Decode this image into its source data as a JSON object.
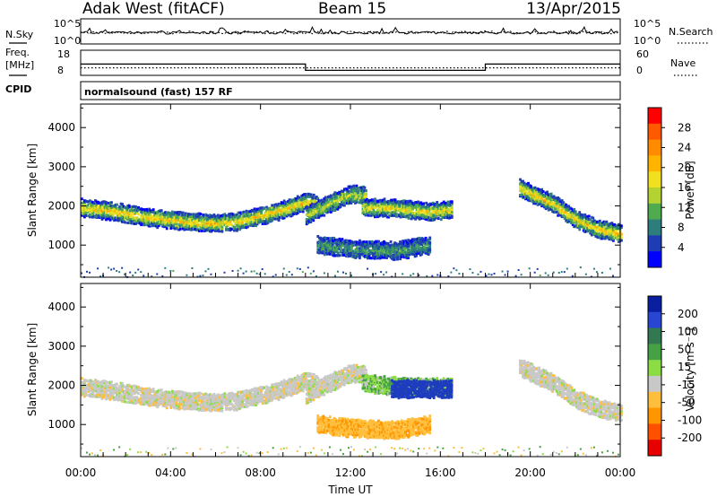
{
  "header": {
    "station": "Adak West (fitACF)",
    "beam": "Beam 15",
    "date": "13/Apr/2015"
  },
  "nsky_panel": {
    "left_label": "N.Sky",
    "right_label": "N.Search",
    "y_ticks_left": [
      "10^5",
      "10^0"
    ],
    "y_ticks_right": [
      "10^5",
      "10^0"
    ]
  },
  "freq_panel": {
    "left_label_line1": "Freq.",
    "left_label_line2": "[MHz]",
    "right_label": "Nave",
    "y_ticks_left": [
      "18",
      "8"
    ],
    "y_ticks_right": [
      "60",
      "0"
    ]
  },
  "cpid_panel": {
    "left_label": "CPID",
    "program": "normalsound (fast) 157 RF"
  },
  "power_panel": {
    "ylabel": "Slant Range [km]",
    "colorbar_label": "Power [dB]",
    "colorbar_ticks": [
      "28",
      "24",
      "20",
      "16",
      "12",
      "8",
      "4"
    ],
    "colorbar_colors": [
      "#ff0000",
      "#ff5a00",
      "#ff8c00",
      "#ffb400",
      "#f0e020",
      "#b4d232",
      "#50aa50",
      "#2d7d7d",
      "#1e3cb4",
      "#0000ff"
    ]
  },
  "velocity_panel": {
    "ylabel": "Slant Range [km]",
    "colorbar_label": "Velocity [m s⁻¹]",
    "colorbar_ticks": [
      "200",
      "100",
      "50",
      "15",
      "-15",
      "-50",
      "-100",
      "-200"
    ],
    "colorbar_colors": [
      "#0a1ea0",
      "#2846d2",
      "#327850",
      "#46a046",
      "#8cdc46",
      "#c8c8c8",
      "#ffbe3c",
      "#ff9600",
      "#ff5000",
      "#e60000"
    ]
  },
  "x_axis": {
    "title": "Time UT",
    "ticks": [
      "00:00",
      "04:00",
      "08:00",
      "12:00",
      "16:00",
      "20:00",
      "00:00"
    ]
  },
  "chart_data": [
    {
      "type": "line",
      "title": "Freq. [MHz]",
      "x": [
        0,
        10,
        18,
        24
      ],
      "series": [
        {
          "name": "Freq.",
          "values": [
            12.5,
            10.0,
            12.5,
            12.5
          ]
        },
        {
          "name": "Nave",
          "values": [
            18,
            18,
            18,
            18
          ]
        }
      ],
      "xlabel": "Time UT",
      "ylim": [
        8,
        18
      ]
    },
    {
      "type": "heatmap",
      "title": "Power [dB]",
      "xlabel": "Time UT",
      "ylabel": "Slant Range [km]",
      "xlim": [
        0,
        24
      ],
      "ylim": [
        180,
        4600
      ],
      "yticks": [
        1000,
        2000,
        3000,
        4000
      ],
      "colorbar": [
        4,
        8,
        12,
        16,
        20,
        24,
        28
      ],
      "bands": [
        {
          "t": [
            0,
            1.5,
            3,
            4.5,
            6,
            7,
            8,
            9,
            10,
            10.5
          ],
          "r": [
            1950,
            1850,
            1700,
            1600,
            1550,
            1600,
            1750,
            1900,
            2100,
            2050
          ],
          "dB": 20
        },
        {
          "t": [
            10,
            11,
            12,
            12.7
          ],
          "r": [
            1750,
            2050,
            2300,
            2250
          ],
          "dB": 16
        },
        {
          "t": [
            12.5,
            13.5,
            14.5,
            15.5,
            16.5
          ],
          "r": [
            1950,
            1950,
            1900,
            1850,
            1900
          ],
          "dB": 18
        },
        {
          "t": [
            10.5,
            12,
            14,
            15.5
          ],
          "r": [
            1000,
            900,
            850,
            1000
          ],
          "dB": 10
        },
        {
          "t": [
            19.5,
            21,
            22,
            23,
            24
          ],
          "r": [
            2450,
            2050,
            1650,
            1400,
            1300
          ],
          "dB": 20
        }
      ]
    },
    {
      "type": "heatmap",
      "title": "Velocity [m s⁻¹]",
      "xlabel": "Time UT",
      "ylabel": "Slant Range [km]",
      "xlim": [
        0,
        24
      ],
      "ylim": [
        180,
        4600
      ],
      "yticks": [
        1000,
        2000,
        3000,
        4000
      ],
      "colorbar": [
        -200,
        -100,
        -50,
        -15,
        15,
        50,
        100,
        200
      ],
      "bands": [
        {
          "t": [
            0,
            1.5,
            3,
            4.5,
            6,
            7,
            8,
            9,
            10,
            10.5
          ],
          "r": [
            1950,
            1850,
            1700,
            1600,
            1550,
            1600,
            1750,
            1900,
            2100,
            2050
          ],
          "v": 0
        },
        {
          "t": [
            10,
            11,
            12,
            12.7
          ],
          "r": [
            1750,
            2050,
            2300,
            2250
          ],
          "v": 0
        },
        {
          "t": [
            12.5,
            13.5,
            14.5,
            15.5,
            16.5
          ],
          "r": [
            2050,
            2000,
            1950,
            1950,
            1950
          ],
          "v": 30
        },
        {
          "t": [
            13.8,
            14.8,
            15.5,
            16.5
          ],
          "r": [
            1900,
            1900,
            1900,
            1900
          ],
          "v": 200
        },
        {
          "t": [
            10.5,
            12,
            14,
            15.5
          ],
          "r": [
            1000,
            900,
            850,
            1000
          ],
          "v": -50
        },
        {
          "t": [
            19.5,
            21,
            22,
            23,
            24
          ],
          "r": [
            2450,
            2050,
            1650,
            1400,
            1300
          ],
          "v": 0
        }
      ]
    }
  ]
}
